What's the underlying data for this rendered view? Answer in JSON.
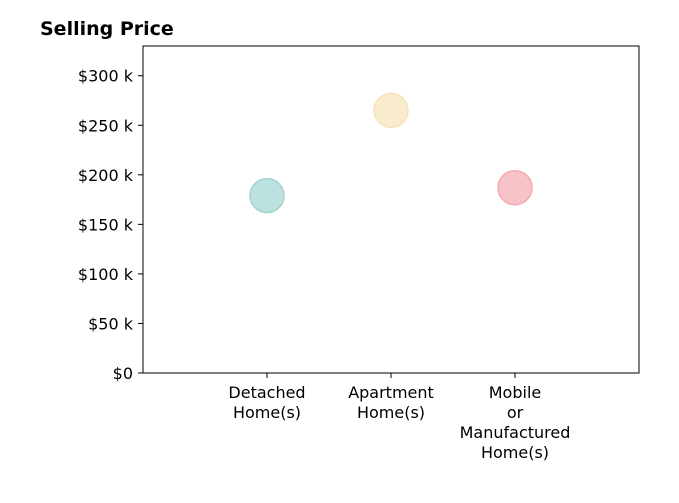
{
  "chart_data": {
    "type": "scatter",
    "title": "Selling Price",
    "xlabel": "",
    "ylabel": "",
    "categories": [
      [
        "Detached",
        "Home(s)"
      ],
      [
        "Apartment",
        "Home(s)"
      ],
      [
        "Mobile",
        "or",
        "Manufactured",
        "Home(s)"
      ]
    ],
    "values": [
      179000,
      265000,
      187000
    ],
    "colors": [
      "#9fd4d0",
      "#f6e3b9",
      "#f5a9b1"
    ],
    "ylim": [
      0,
      330000
    ],
    "yticks": [
      0,
      50000,
      100000,
      150000,
      200000,
      250000,
      300000
    ],
    "ytick_labels": [
      "$0",
      "$50 k",
      "$100 k",
      "$150 k",
      "$200 k",
      "$250 k",
      "$300 k"
    ],
    "grid": false,
    "legend": "none"
  }
}
